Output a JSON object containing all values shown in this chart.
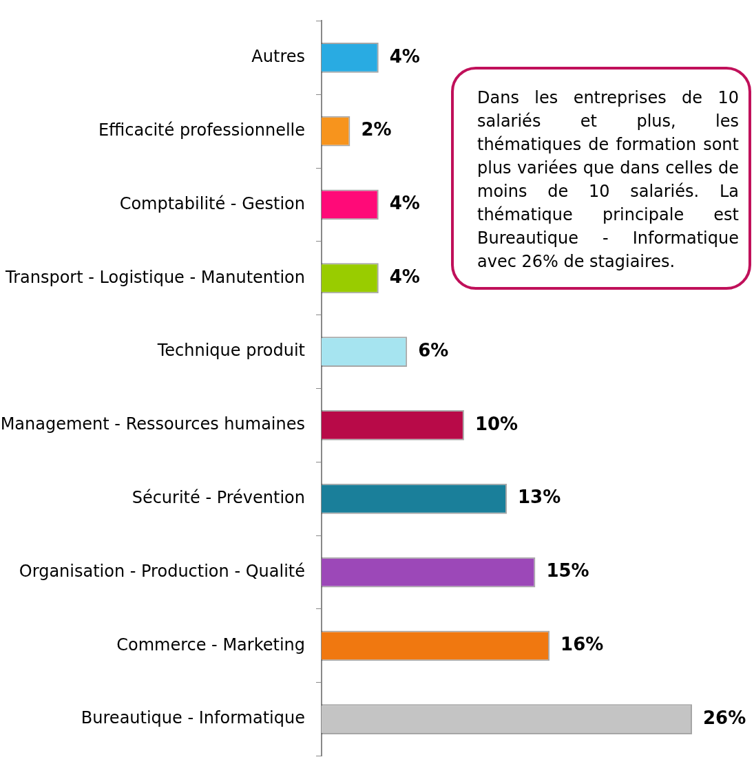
{
  "chart_data": {
    "type": "bar",
    "orientation": "horizontal",
    "categories": [
      "Autres",
      "Efficacité professionnelle",
      "Comptabilité - Gestion",
      "Transport - Logistique - Manutention",
      "Technique produit",
      "Management - Ressources humaines",
      "Sécurité - Prévention",
      "Organisation - Production - Qualité",
      "Commerce - Marketing",
      "Bureautique - Informatique"
    ],
    "values": [
      4,
      2,
      4,
      4,
      6,
      10,
      13,
      15,
      16,
      26
    ],
    "colors": [
      "#29abe2",
      "#f7941d",
      "#ff0a78",
      "#99cc00",
      "#a6e4f0",
      "#b80a48",
      "#1a7f9a",
      "#9c48b8",
      "#f07810",
      "#c4c4c4"
    ],
    "value_labels": [
      "4%",
      "2%",
      "4%",
      "4%",
      "6%",
      "10%",
      "13%",
      "15%",
      "16%",
      "26%"
    ],
    "tick_labels": "y",
    "legend": false,
    "annotations": [
      "Dans les entreprises de 10 salariés et plus, les thématiques de formation sont plus variées que dans celles de moins de 10 salariés. La thématique principale est Bureautique - Informatique avec 26% de stagiaires."
    ]
  }
}
